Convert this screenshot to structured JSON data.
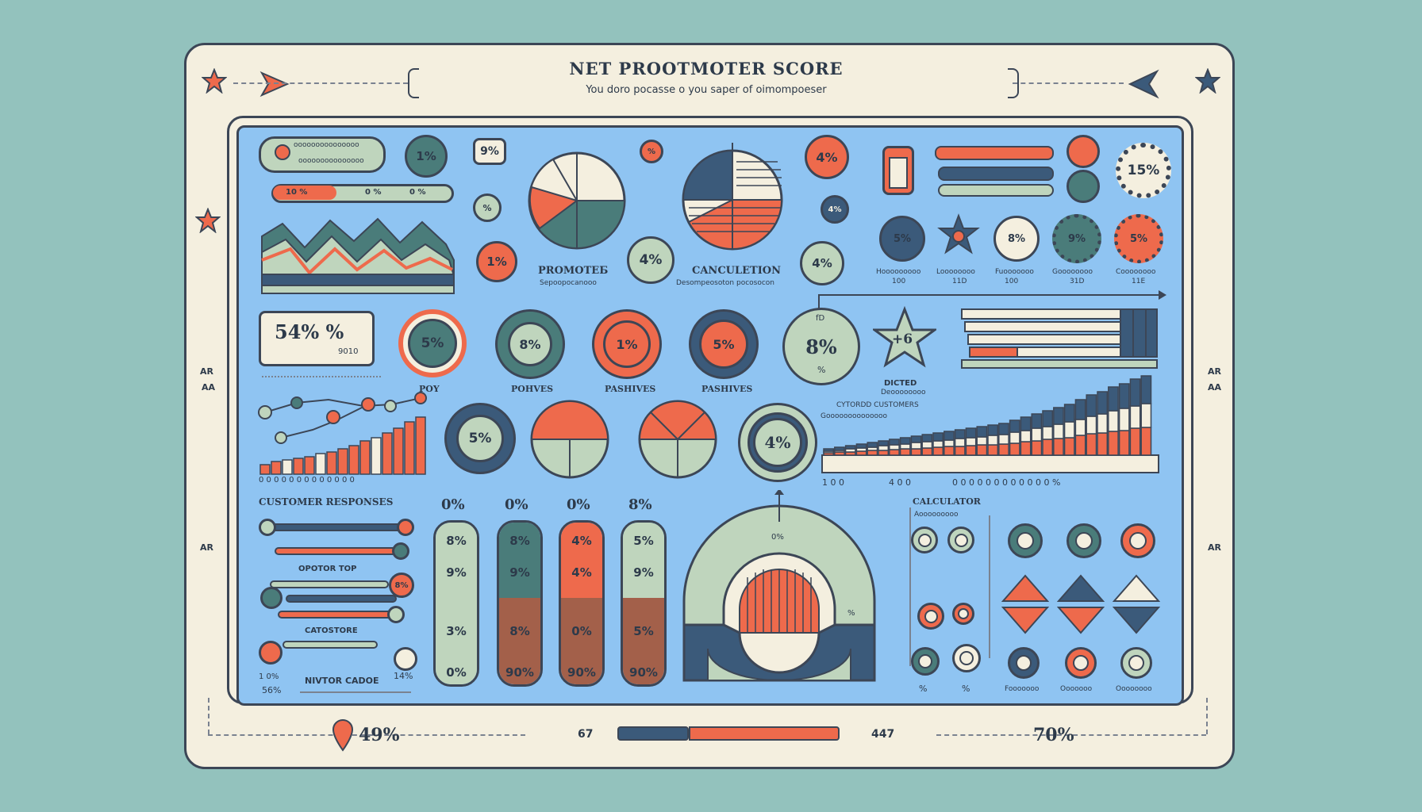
{
  "header": {
    "title": "NET PROOTMOTER SCORE",
    "subtitle": "You doro pocasse o you saper of oimompoeser"
  },
  "top_left": {
    "line1": "ooooooooooooooo",
    "line2": "ooooooooooooooo",
    "pct_a": "10 %",
    "pct_b": "0 %",
    "pct_c": "0 %",
    "circle_1": "1%",
    "callout": "9%",
    "circle_2": "%",
    "circle_3": "1%"
  },
  "pies": {
    "promoters_label": "PROMOTEБ",
    "promoters_sub": "Sepoopocanooo",
    "promoters_circle": "4%",
    "calc_label": "CANCULETION",
    "calc_sub": "Desompeosoton pocosocon",
    "calc_circle": "4%",
    "calc_small": "4%",
    "hex_small": "%"
  },
  "top_right": {
    "circle_a": "4%",
    "gear_big": "15%",
    "row": [
      {
        "value": "5%",
        "label": "Hooooooooo",
        "sub": "100"
      },
      {
        "value": "",
        "label": "Loooooooo",
        "sub": "11D"
      },
      {
        "value": "8%",
        "label": "Fuooooooo",
        "sub": "100"
      },
      {
        "value": "9%",
        "label": "Goooooooo",
        "sub": "31D"
      },
      {
        "value": "5%",
        "label": "Coooooooo",
        "sub": "11E"
      }
    ]
  },
  "middle": {
    "box_value": "54% %",
    "box_sub": "9010",
    "donuts": [
      {
        "value": "5%",
        "label": "POY"
      },
      {
        "value": "8%",
        "label": "POHVES"
      },
      {
        "value": "1%",
        "label": "PASHIVES"
      },
      {
        "value": "5%",
        "label": "PASHIVES"
      }
    ],
    "big_circle": "8%",
    "big_circle_top": "fD",
    "big_circle_bot": "%",
    "star_text": "+6",
    "star_label": "DICTED",
    "star_sub": "Deoooooooo",
    "cust_label": "CYTORDD CUSTOMERS",
    "cust_sub": "Goooooooooooooo"
  },
  "row3": {
    "donut_5": "5%",
    "donut_4": "4%",
    "bars_axis": "0 0 0 0 0 0 0 0 0 0 0 0 0",
    "right_axis_a": "1 0 0",
    "right_axis_b": "4 0 0",
    "right_axis_c": "0 0 0 0 0 0 0 0 0 0 0 0 %"
  },
  "bottom_left": {
    "title": "CUSTOMER RESPONSES",
    "mid_label": "OPOTOR TOP",
    "pct_1": "8%",
    "cat_label": "CATOSTORE",
    "foot_left_a": "1 0%",
    "foot_left_b": "56%",
    "foot_mid": "NIVTOR CADOE",
    "foot_right": "14%"
  },
  "pills": [
    {
      "head": "0%",
      "a": "8%",
      "b": "9%",
      "c": "3%",
      "d": "0%"
    },
    {
      "head": "0%",
      "a": "8%",
      "b": "9%",
      "c": "8%",
      "d": "90%"
    },
    {
      "head": "0%",
      "a": "4%",
      "b": "4%",
      "c": "0%",
      "d": "90%"
    },
    {
      "head": "8%",
      "a": "5%",
      "b": "9%",
      "c": "5%",
      "d": "90%"
    }
  ],
  "gauge": {
    "top_pct": "0%",
    "side_pct": "%"
  },
  "bottom_right": {
    "calc_label": "CALCULATOR",
    "calc_sub": "Aooooooooo",
    "bl_a": "%",
    "bl_b": "%",
    "captions": [
      "Fooooooo",
      "Ooooooo",
      "Oooooooo"
    ]
  },
  "footer": {
    "left_value": "49%",
    "mid_a": "67",
    "mid_b": "447",
    "right_value": "70%"
  },
  "side_labels": {
    "left_a": "AR",
    "left_b": "AA",
    "left_c": "AR",
    "right_a": "AR",
    "right_b": "AA",
    "right_c": "AR"
  },
  "colors": {
    "background": "#93c2bd",
    "frame": "#f4efdf",
    "panel": "#8fc4f2",
    "ink": "#2d3a4a",
    "accent_red": "#ee6a4c",
    "accent_teal": "#4a7c7a",
    "accent_sage": "#bfd5bd",
    "accent_navy": "#3b5a7a",
    "accent_brown": "#a3604a"
  }
}
